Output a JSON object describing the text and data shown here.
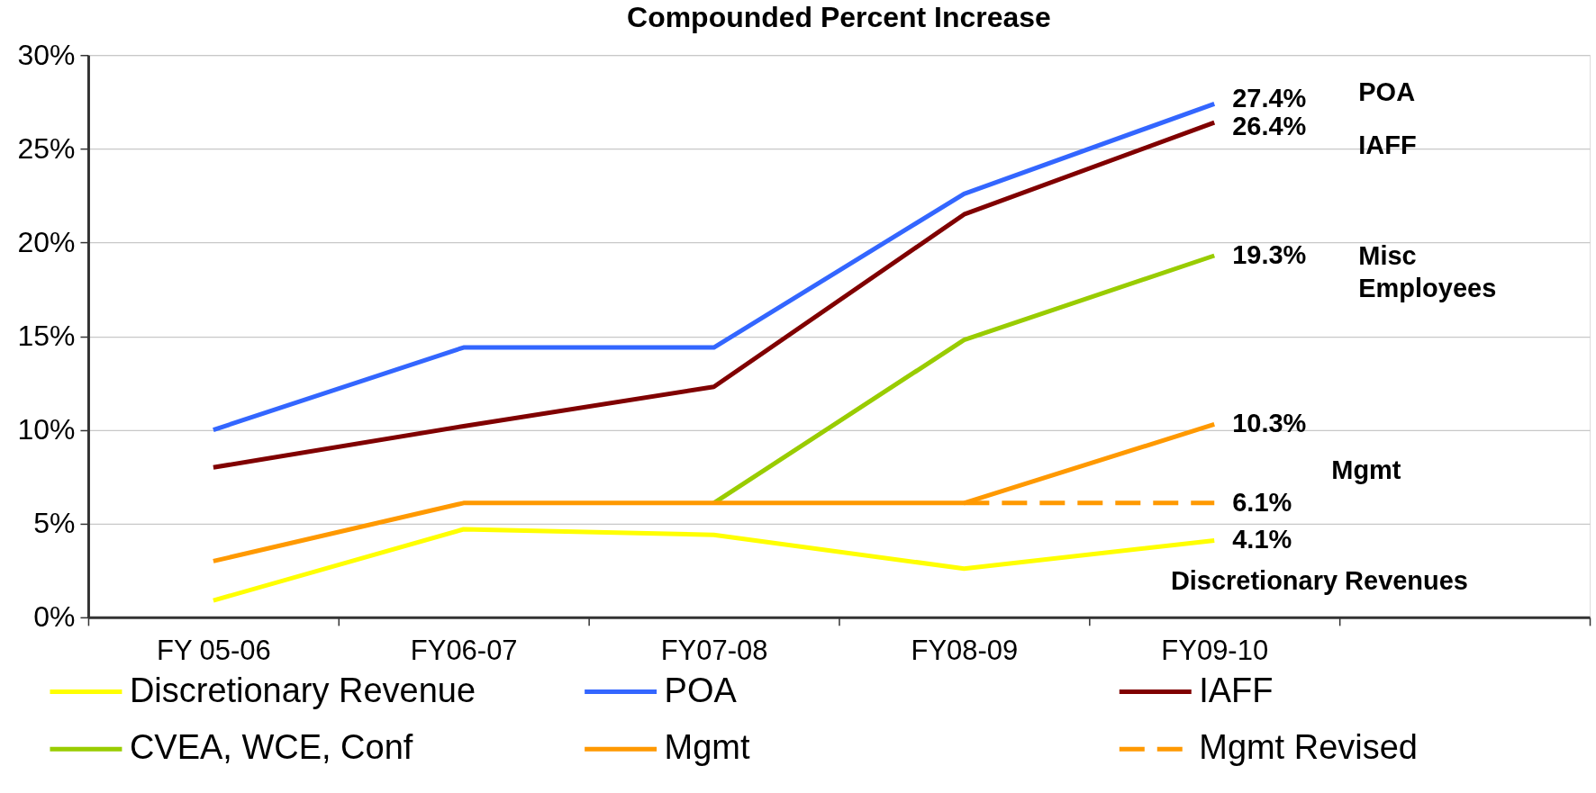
{
  "chart_data": {
    "type": "line",
    "title": "Compounded Percent Increase",
    "categories": [
      "FY 05-06",
      "FY06-07",
      "FY07-08",
      "FY08-09",
      "FY09-10",
      null
    ],
    "series": [
      {
        "name": "Discretionary Revenue",
        "color": "#ffff00",
        "line_style": "solid",
        "values": [
          0.9,
          4.7,
          4.4,
          2.6,
          4.1,
          null
        ],
        "value_labels": [
          null,
          null,
          null,
          null,
          "4.1%",
          null
        ]
      },
      {
        "name": "POA",
        "color": "#3366ff",
        "line_style": "solid",
        "values": [
          10.0,
          14.4,
          14.4,
          22.6,
          27.4,
          null
        ],
        "value_labels": [
          null,
          null,
          null,
          null,
          "27.4%",
          null
        ]
      },
      {
        "name": "IAFF",
        "color": "#800000",
        "line_style": "solid",
        "values": [
          8.0,
          10.2,
          12.3,
          21.5,
          26.4,
          null
        ],
        "value_labels": [
          null,
          null,
          null,
          null,
          "26.4%",
          null
        ]
      },
      {
        "name": "CVEA, WCE, Conf",
        "color": "#99cc00",
        "line_style": "solid",
        "values": [
          null,
          null,
          6.1,
          14.8,
          19.3,
          null
        ],
        "value_labels": [
          null,
          null,
          null,
          null,
          "19.3%",
          null
        ]
      },
      {
        "name": "Mgmt",
        "color": "#ff9900",
        "line_style": "solid",
        "values": [
          3.0,
          6.1,
          6.1,
          6.1,
          10.3,
          null
        ],
        "value_labels": [
          null,
          null,
          null,
          null,
          "10.3%",
          null
        ]
      },
      {
        "name": "Mgmt Revised",
        "color": "#ff9900",
        "line_style": "dashed",
        "values": [
          null,
          null,
          null,
          6.1,
          6.1,
          null
        ],
        "value_labels": [
          null,
          null,
          null,
          null,
          "6.1%",
          null
        ]
      }
    ],
    "ylim": [
      0,
      30
    ],
    "yticks": [
      {
        "value": 0,
        "label": "0%"
      },
      {
        "value": 5,
        "label": "5%"
      },
      {
        "value": 10,
        "label": "10%"
      },
      {
        "value": 15,
        "label": "15%"
      },
      {
        "value": 20,
        "label": "20%"
      },
      {
        "value": 25,
        "label": "25%"
      },
      {
        "value": 30,
        "label": "30%"
      }
    ],
    "grid": "y",
    "legend": "bottom",
    "annotations": [
      "POA",
      "IAFF",
      "Misc Employees",
      "Mgmt",
      "Discretionary Revenues"
    ]
  }
}
